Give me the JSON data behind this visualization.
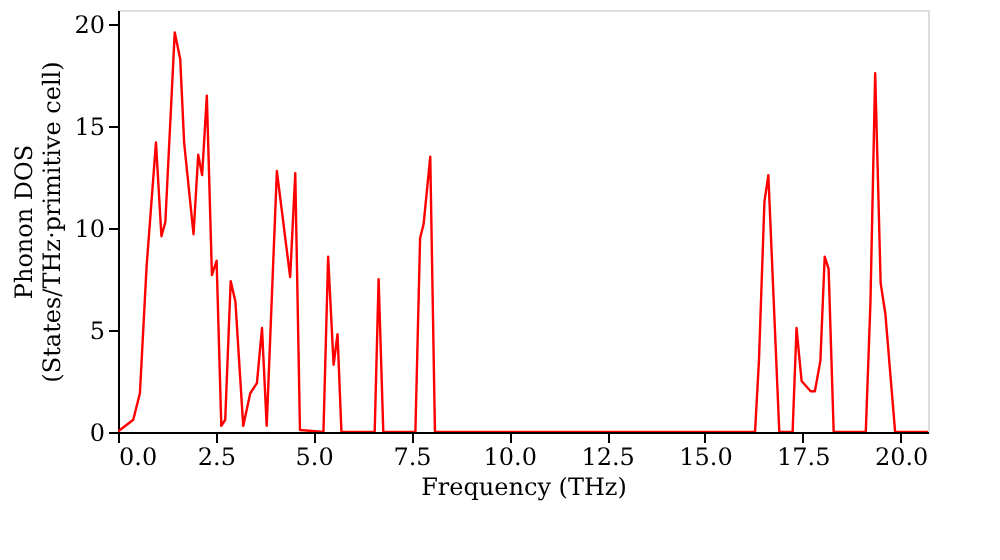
{
  "chart_data": {
    "type": "line",
    "xlabel": "Frequency (THz)",
    "ylabel": "Phonon DOS\n(States/THz·primitive cell)",
    "x": [
      0,
      0.05,
      0.39,
      0.56,
      0.73,
      0.97,
      1.11,
      1.21,
      1.45,
      1.59,
      1.69,
      1.93,
      2.05,
      2.15,
      2.27,
      2.4,
      2.52,
      2.64,
      2.74,
      2.88,
      3.0,
      3.2,
      3.38,
      3.55,
      3.68,
      3.8,
      4.06,
      4.4,
      4.53,
      4.65,
      5.25,
      5.37,
      5.51,
      5.61,
      5.71,
      6.56,
      6.66,
      6.78,
      7.6,
      7.72,
      7.81,
      7.98,
      8.1,
      16.28,
      16.38,
      16.52,
      16.62,
      16.9,
      17.24,
      17.34,
      17.47,
      17.7,
      17.81,
      17.95,
      18.06,
      18.16,
      18.29,
      19.11,
      19.23,
      19.35,
      19.49,
      19.61,
      19.86,
      20.7
    ],
    "series": [
      {
        "color": "#ff0000",
        "values": [
          0,
          0.1,
          0.6,
          1.9,
          8.1,
          14.2,
          9.6,
          10.3,
          19.6,
          18.3,
          14.2,
          9.7,
          13.6,
          12.6,
          16.5,
          7.7,
          8.4,
          0.3,
          0.6,
          7.4,
          6.4,
          0.3,
          1.9,
          2.4,
          5.1,
          0.3,
          12.8,
          7.6,
          12.7,
          0.1,
          0,
          8.6,
          3.3,
          4.8,
          0,
          0,
          7.5,
          0,
          0,
          9.5,
          10.2,
          13.5,
          0,
          0,
          3.5,
          11.3,
          12.6,
          0,
          0,
          5.1,
          2.5,
          2.0,
          2.0,
          3.5,
          8.6,
          8.0,
          0,
          0,
          6.4,
          17.6,
          7.3,
          5.8,
          0,
          0
        ]
      }
    ],
    "xlim": [
      0,
      20.7
    ],
    "ylim": [
      0,
      20.7
    ],
    "xticks": [
      {
        "value": 0,
        "label": "0.0"
      },
      {
        "value": 2.5,
        "label": "2.5"
      },
      {
        "value": 5,
        "label": "5.0"
      },
      {
        "value": 7.5,
        "label": "7.5"
      },
      {
        "value": 10,
        "label": "10.0"
      },
      {
        "value": 12.5,
        "label": "12.5"
      },
      {
        "value": 15,
        "label": "15.0"
      },
      {
        "value": 17.5,
        "label": "17.5"
      },
      {
        "value": 20,
        "label": "20.0"
      }
    ],
    "yticks": [
      0,
      5,
      10,
      15,
      20
    ],
    "grid": false,
    "line_style": "solid",
    "marker": "none"
  }
}
